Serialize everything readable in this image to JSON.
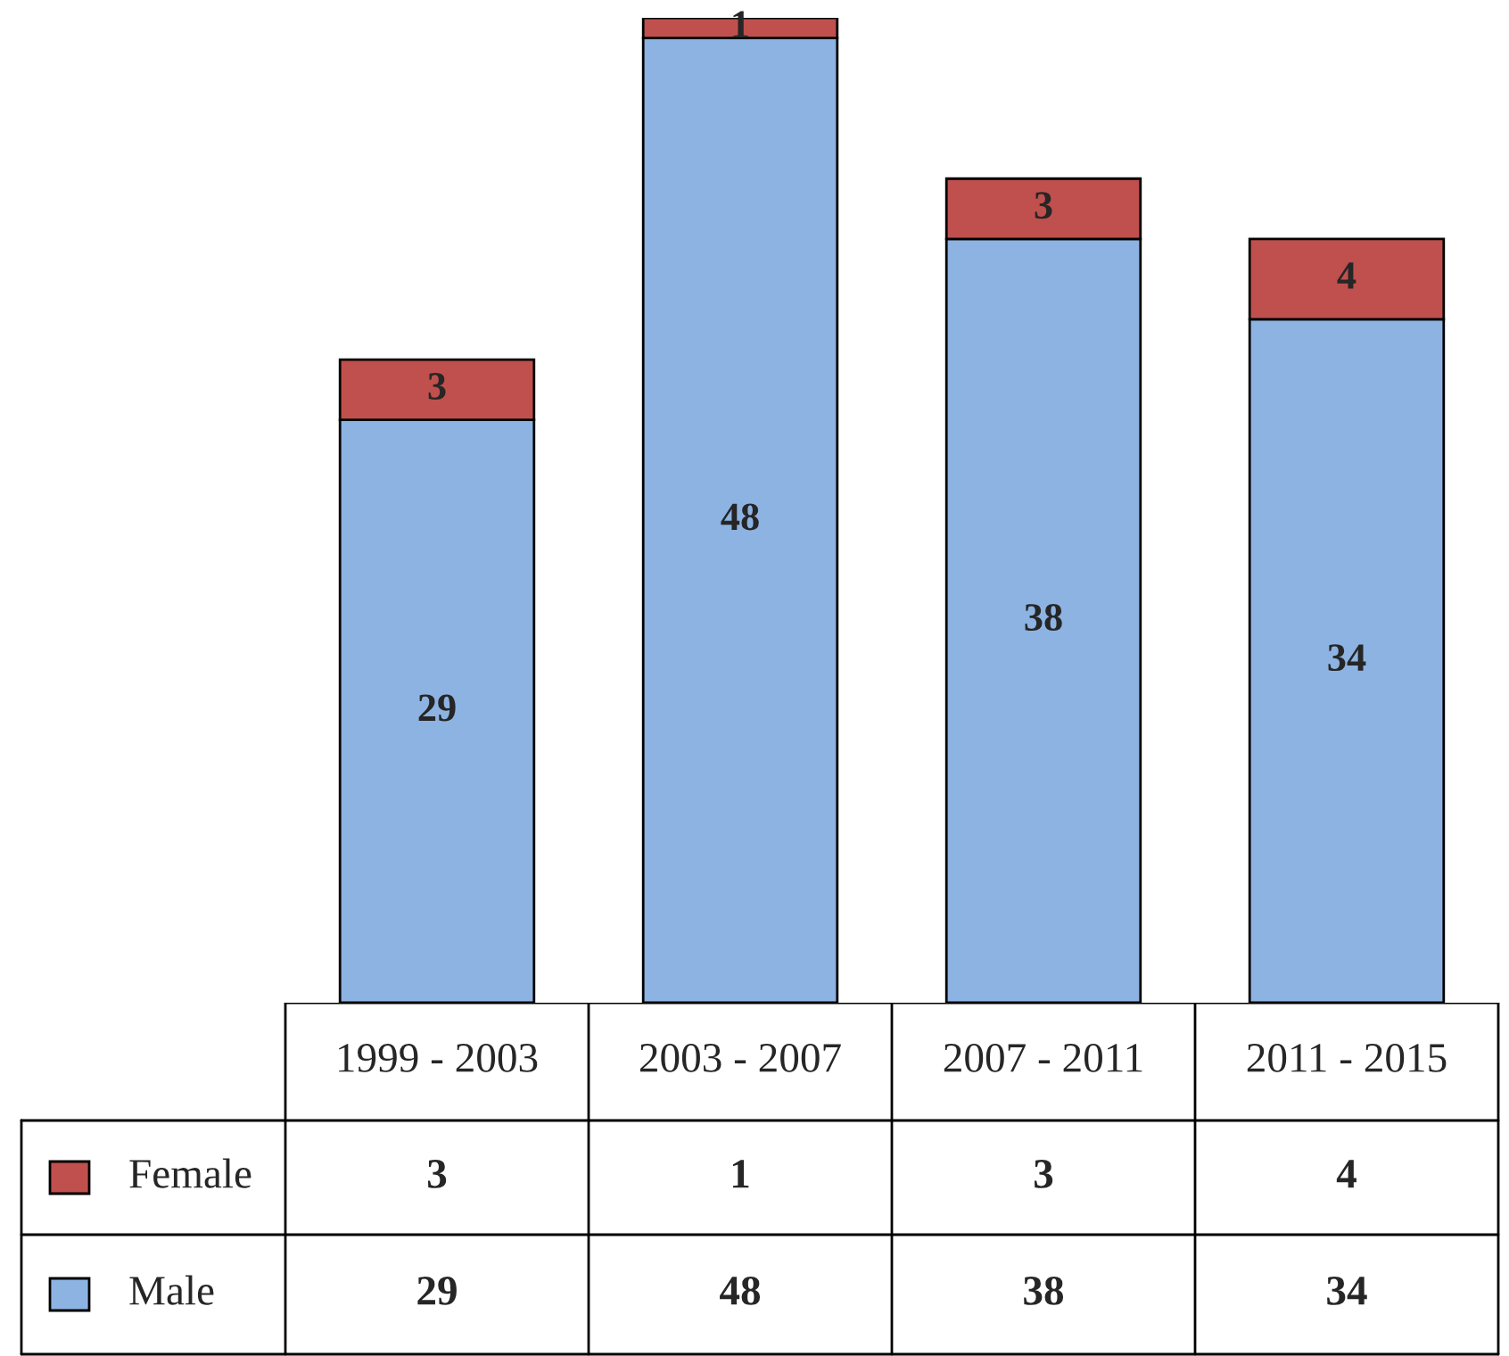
{
  "chart_data": {
    "type": "bar",
    "stacked": true,
    "legend": "bottom left",
    "annotations": [
      "3",
      "1",
      "3",
      "4",
      "29",
      "48",
      "38",
      "34"
    ],
    "categories": [
      "1999 - 2003",
      "2003 - 2007",
      "2007 - 2011",
      "2011 - 2015"
    ],
    "series": [
      {
        "name": "Male",
        "color": "#8db3e2",
        "values": [
          29,
          48,
          38,
          34
        ],
        "value_labels": [
          "29",
          "48",
          "38",
          "34"
        ]
      },
      {
        "name": "Female",
        "color": "#c0504d",
        "values": [
          3,
          1,
          3,
          4
        ],
        "value_labels": [
          "3",
          "1",
          "3",
          "4"
        ]
      }
    ]
  }
}
